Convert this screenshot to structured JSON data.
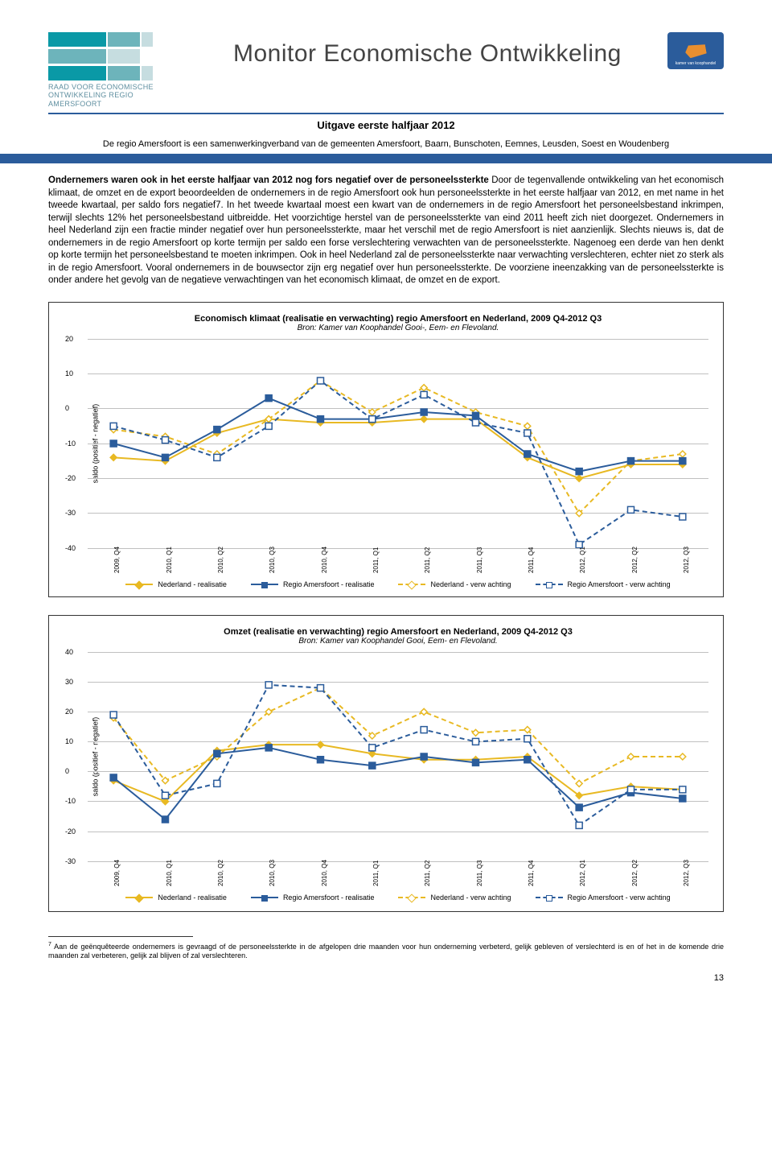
{
  "header": {
    "logo_sub_line1": "RAAD VOOR ECONOMISCHE",
    "logo_sub_line2": "ONTWIKKELING REGIO",
    "logo_sub_line3": "AMERSFOORT",
    "banner_title": "Monitor Economische Ontwikkeling",
    "badge_label": "kamer van koophandel"
  },
  "subtitle": "Uitgave eerste halfjaar 2012",
  "intro": "De regio Amersfoort is een samenwerkingverband van de gemeenten Amersfoort, Baarn, Bunschoten, Eemnes, Leusden, Soest en Woudenberg",
  "body_lead": "Ondernemers waren ook in het eerste halfjaar van 2012 nog fors negatief over de personeelssterkte",
  "body_text": "Door de tegenvallende ontwikkeling van het economisch klimaat, de omzet en de export beoordeelden de ondernemers in de regio Amersfoort ook hun personeelssterkte in het eerste halfjaar van 2012, en met name in het tweede kwartaal, per saldo fors negatief7. In het tweede kwartaal moest een kwart van de ondernemers in de regio Amersfoort het personeelsbestand inkrimpen, terwijl slechts 12% het personeelsbestand uitbreidde. Het voorzichtige herstel van de personeelssterkte van eind 2011 heeft zich niet doorgezet. Ondernemers in heel Nederland zijn een fractie minder negatief over hun personeelssterkte, maar het verschil met de regio Amersfoort is niet aanzienlijk. Slechts nieuws is, dat de ondernemers in de regio Amersfoort op korte termijn per saldo een forse verslechtering verwachten van de personeelssterkte. Nagenoeg een derde van hen denkt op korte termijn het personeelsbestand te moeten inkrimpen. Ook in heel Nederland zal de personeelssterkte naar verwachting verslechteren, echter niet zo sterk als in de regio Amersfoort. Vooral ondernemers in de bouwsector zijn erg negatief over hun personeelssterkte. De voorziene ineenzakking van de personeelssterkte is onder andere het gevolg van de negatieve verwachtingen van het economisch klimaat, de omzet en de export.",
  "chart1": {
    "title": "Economisch klimaat (realisatie en verwachting) regio Amersfoort en Nederland, 2009 Q4-2012 Q3",
    "subtitle": "Bron: Kamer van Koophandel Gooi-, Eem- en Flevoland.",
    "ylabel": "saldo (positief - negatief)",
    "ymin": -40,
    "ymax": 20,
    "ystep": 10,
    "categories": [
      "2009, Q4",
      "2010, Q1",
      "2010, Q2",
      "2010, Q3",
      "2010, Q4",
      "2011, Q1",
      "2011, Q2",
      "2011, Q3",
      "2011, Q4",
      "2012, Q1",
      "2012, Q2",
      "2012, Q3"
    ],
    "series": {
      "ned_real": {
        "label": "Nederland - realisatie",
        "color": "#e8b923",
        "dash": "",
        "marker": "diamond",
        "values": [
          -14,
          -15,
          -7,
          -3,
          -4,
          -4,
          -3,
          -3,
          -14,
          -20,
          -16,
          -16
        ]
      },
      "ned_verw": {
        "label": "Nederland - verw achting",
        "color": "#e8b923",
        "dash": "6,4",
        "marker": "diamond-open",
        "values": [
          -6,
          -8,
          -13,
          -3,
          8,
          -1,
          6,
          -1,
          -5,
          -30,
          -15,
          -13
        ]
      },
      "regio_real": {
        "label": "Regio Amersfoort - realisatie",
        "color": "#2b5c9b",
        "dash": "",
        "marker": "square",
        "values": [
          -10,
          -14,
          -6,
          3,
          -3,
          -3,
          -1,
          -2,
          -13,
          -18,
          -15,
          -15
        ]
      },
      "regio_verw": {
        "label": "Regio Amersfoort - verw achting",
        "color": "#2b5c9b",
        "dash": "6,4",
        "marker": "square-open",
        "values": [
          -5,
          -9,
          -14,
          -5,
          8,
          -3,
          4,
          -4,
          -7,
          -39,
          -29,
          -31
        ]
      }
    }
  },
  "chart2": {
    "title": "Omzet (realisatie en verwachting) regio Amersfoort en Nederland, 2009 Q4-2012 Q3",
    "subtitle": "Bron: Kamer van Koophandel Gooi, Eem- en Flevoland.",
    "ylabel": "saldo (positief - negatief)",
    "ymin": -30,
    "ymax": 40,
    "ystep": 10,
    "categories": [
      "2009, Q4",
      "2010, Q1",
      "2010, Q2",
      "2010, Q3",
      "2010, Q4",
      "2011, Q1",
      "2011, Q2",
      "2011, Q3",
      "2011, Q4",
      "2012, Q1",
      "2012, Q2",
      "2012, Q3"
    ],
    "series": {
      "ned_real": {
        "label": "Nederland - realisatie",
        "color": "#e8b923",
        "dash": "",
        "marker": "diamond",
        "values": [
          -3,
          -10,
          7,
          9,
          9,
          6,
          4,
          4,
          5,
          -8,
          -5,
          -6
        ]
      },
      "ned_verw": {
        "label": "Nederland - verw achting",
        "color": "#e8b923",
        "dash": "6,4",
        "marker": "diamond-open",
        "values": [
          18,
          -3,
          5,
          20,
          28,
          12,
          20,
          13,
          14,
          -4,
          5,
          5
        ]
      },
      "regio_real": {
        "label": "Regio Amersfoort - realisatie",
        "color": "#2b5c9b",
        "dash": "",
        "marker": "square",
        "values": [
          -2,
          -16,
          6,
          8,
          4,
          2,
          5,
          3,
          4,
          -12,
          -7,
          -9
        ]
      },
      "regio_verw": {
        "label": "Regio Amersfoort - verw achting",
        "color": "#2b5c9b",
        "dash": "6,4",
        "marker": "square-open",
        "values": [
          19,
          -8,
          -4,
          29,
          28,
          8,
          14,
          10,
          11,
          -18,
          -6,
          -6
        ]
      }
    }
  },
  "legend_labels": {
    "ned_real": "Nederland - realisatie",
    "ned_verw": "Nederland - verw achting",
    "regio_real": "Regio Amersfoort - realisatie",
    "regio_verw": "Regio Amersfoort - verw achting"
  },
  "footnote_marker": "7",
  "footnote": "Aan de geënquêteerde ondernemers is gevraagd of de personeelssterkte in de afgelopen drie maanden voor hun onderneming verbeterd, gelijk gebleven of verslechterd is en of het in de komende drie maanden zal verbeteren, gelijk zal blijven of zal verslechteren.",
  "page_number": "13",
  "colors": {
    "blue": "#2b5c9b",
    "yellow": "#e8b923",
    "grid": "#c0c0c0"
  }
}
